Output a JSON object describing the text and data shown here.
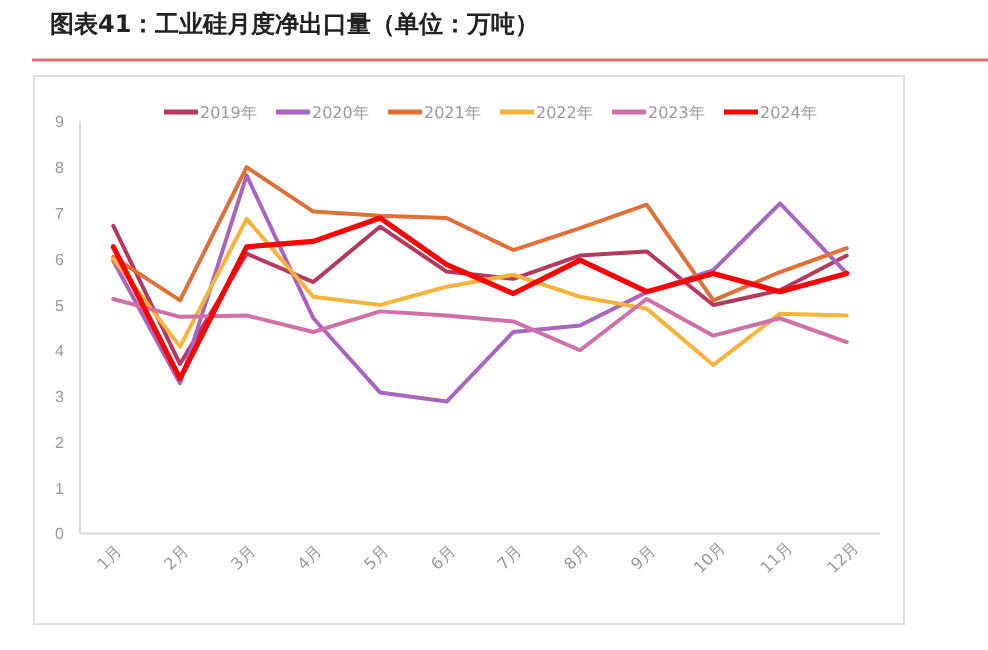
{
  "chart_data": {
    "type": "line",
    "title": "图表41：工业硅月度净出口量（单位：万吨）",
    "categories": [
      "1月",
      "2月",
      "3月",
      "4月",
      "5月",
      "6月",
      "7月",
      "8月",
      "9月",
      "10月",
      "11月",
      "12月"
    ],
    "series": [
      {
        "name": "2019年",
        "color": "#b5395c",
        "values": [
          6.72,
          3.7,
          6.11,
          5.49,
          6.7,
          5.72,
          5.56,
          6.07,
          6.16,
          4.99,
          5.31,
          6.07
        ]
      },
      {
        "name": "2020年",
        "color": "#a866c0",
        "values": [
          5.95,
          3.28,
          7.82,
          4.7,
          3.08,
          2.88,
          4.4,
          4.54,
          5.27,
          5.75,
          7.21,
          5.68
        ]
      },
      {
        "name": "2021年",
        "color": "#e07038",
        "values": [
          6.04,
          5.09,
          8.0,
          7.03,
          6.94,
          6.89,
          6.19,
          6.67,
          7.18,
          5.09,
          5.71,
          6.23
        ]
      },
      {
        "name": "2022年",
        "color": "#f6b43c",
        "values": [
          6.0,
          4.08,
          6.87,
          5.17,
          4.99,
          5.39,
          5.65,
          5.17,
          4.91,
          3.68,
          4.8,
          4.76
        ]
      },
      {
        "name": "2023年",
        "color": "#d070a8",
        "values": [
          5.12,
          4.73,
          4.76,
          4.4,
          4.85,
          4.76,
          4.63,
          4.0,
          5.12,
          4.32,
          4.7,
          4.18
        ]
      },
      {
        "name": "2024年",
        "color": "#ff0000",
        "values": [
          6.26,
          3.38,
          6.26,
          6.38,
          6.89,
          5.87,
          5.24,
          5.97,
          5.28,
          5.68,
          5.28,
          5.68
        ]
      }
    ],
    "ylim": [
      0,
      9
    ],
    "yticks": [
      0,
      1,
      2,
      3,
      4,
      5,
      6,
      7,
      8,
      9
    ],
    "grid": false,
    "legend": "top",
    "marker": "none",
    "line_style": "solid"
  }
}
